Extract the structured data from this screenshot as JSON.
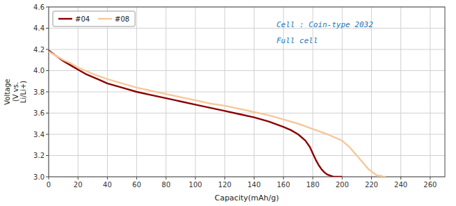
{
  "chart_data": {
    "type": "line",
    "xlabel": "Capacity(mAh/g)",
    "ylabel": "Voltage\n(V vs.\nLi/Li+)",
    "xlim": [
      0,
      270
    ],
    "ylim": [
      3.0,
      4.6
    ],
    "xticks": [
      0,
      20,
      40,
      60,
      80,
      100,
      120,
      140,
      160,
      180,
      200,
      220,
      240,
      260
    ],
    "yticks": [
      {
        "value": 3.0,
        "label": "3.0"
      },
      3.2,
      3.4,
      3.6,
      3.8,
      {
        "value": 4.0,
        "label": "4.0"
      },
      4.2,
      4.4,
      4.6
    ],
    "grid": true,
    "legend": "upper left",
    "annotations": [
      "Cell : Coin-type 2032",
      "Full cell"
    ],
    "series": [
      {
        "name": "#04",
        "color": "#8B0000",
        "x": [
          0,
          5,
          10,
          15,
          20,
          25,
          30,
          35,
          40,
          50,
          60,
          70,
          80,
          90,
          100,
          110,
          120,
          130,
          140,
          150,
          160,
          165,
          170,
          175,
          178,
          180,
          182,
          184,
          186,
          188,
          190,
          192,
          194,
          196,
          198,
          200
        ],
        "values": [
          4.19,
          4.14,
          4.09,
          4.05,
          4.01,
          3.97,
          3.94,
          3.91,
          3.88,
          3.84,
          3.8,
          3.77,
          3.74,
          3.71,
          3.68,
          3.65,
          3.62,
          3.59,
          3.56,
          3.52,
          3.47,
          3.44,
          3.4,
          3.34,
          3.28,
          3.22,
          3.16,
          3.11,
          3.07,
          3.04,
          3.02,
          3.01,
          3.0,
          3.0,
          3.0,
          3.0
        ]
      },
      {
        "name": "#08",
        "color": "#f5c89a",
        "x": [
          0,
          5,
          10,
          15,
          20,
          25,
          30,
          40,
          50,
          60,
          70,
          80,
          90,
          100,
          110,
          120,
          130,
          140,
          150,
          160,
          170,
          180,
          190,
          200,
          205,
          210,
          215,
          218,
          220,
          222,
          224,
          226,
          228,
          230
        ],
        "values": [
          4.18,
          4.14,
          4.1,
          4.07,
          4.03,
          4.0,
          3.97,
          3.92,
          3.88,
          3.84,
          3.81,
          3.78,
          3.75,
          3.72,
          3.69,
          3.67,
          3.64,
          3.61,
          3.58,
          3.54,
          3.5,
          3.45,
          3.4,
          3.34,
          3.28,
          3.2,
          3.12,
          3.07,
          3.05,
          3.03,
          3.01,
          3.01,
          3.0,
          3.0
        ]
      }
    ]
  }
}
